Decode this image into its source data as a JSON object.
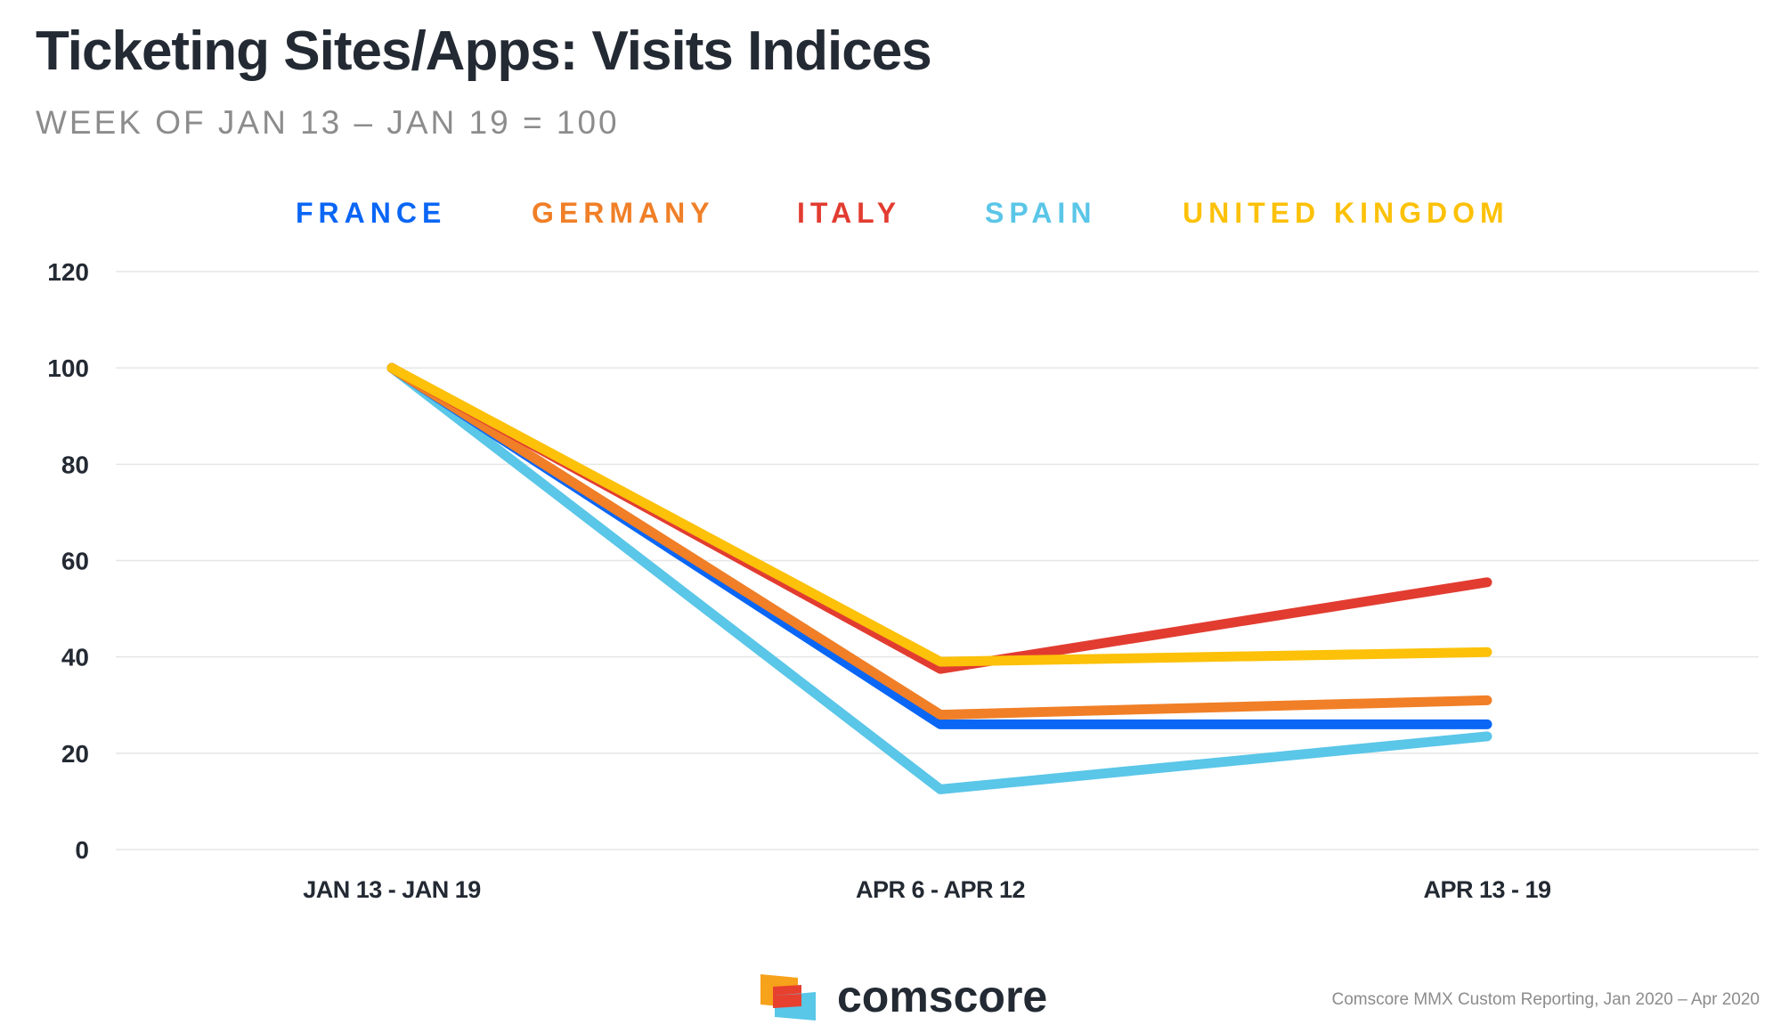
{
  "title": "Ticketing Sites/Apps: Visits Indices",
  "subtitle": "WEEK OF JAN 13 – JAN 19 = 100",
  "logo": {
    "text": "comscore"
  },
  "source": "Comscore MMX Custom Reporting, Jan 2020 – Apr 2020",
  "colors": {
    "gridline": "#e6e6e6",
    "text_dark": "#232a33",
    "text_muted": "#8c8c8c",
    "logo_orange": "#f7a21b",
    "logo_red": "#e8402f",
    "logo_blue": "#58c7e8"
  },
  "chart_data": {
    "type": "line",
    "title": "Ticketing Sites/Apps: Visits Indices",
    "subtitle": "WEEK OF JAN 13 – JAN 19 = 100",
    "categories": [
      "JAN 13 - JAN 19",
      "APR 6 - APR 12",
      "APR 13 - 19"
    ],
    "ylim": [
      0,
      120
    ],
    "yticks": [
      0,
      20,
      40,
      60,
      80,
      100,
      120
    ],
    "grid": true,
    "legend_position": "top",
    "series": [
      {
        "name": "FRANCE",
        "color": "#0a66f5",
        "values": [
          100,
          26,
          26
        ]
      },
      {
        "name": "GERMANY",
        "color": "#f07f27",
        "values": [
          100,
          28,
          31
        ]
      },
      {
        "name": "ITALY",
        "color": "#e23c31",
        "values": [
          100,
          37.5,
          55.5
        ]
      },
      {
        "name": "SPAIN",
        "color": "#5ac6e8",
        "values": [
          100,
          12.5,
          23.5
        ]
      },
      {
        "name": "UNITED KINGDOM",
        "color": "#fcc108",
        "values": [
          100,
          39,
          41
        ]
      }
    ]
  }
}
